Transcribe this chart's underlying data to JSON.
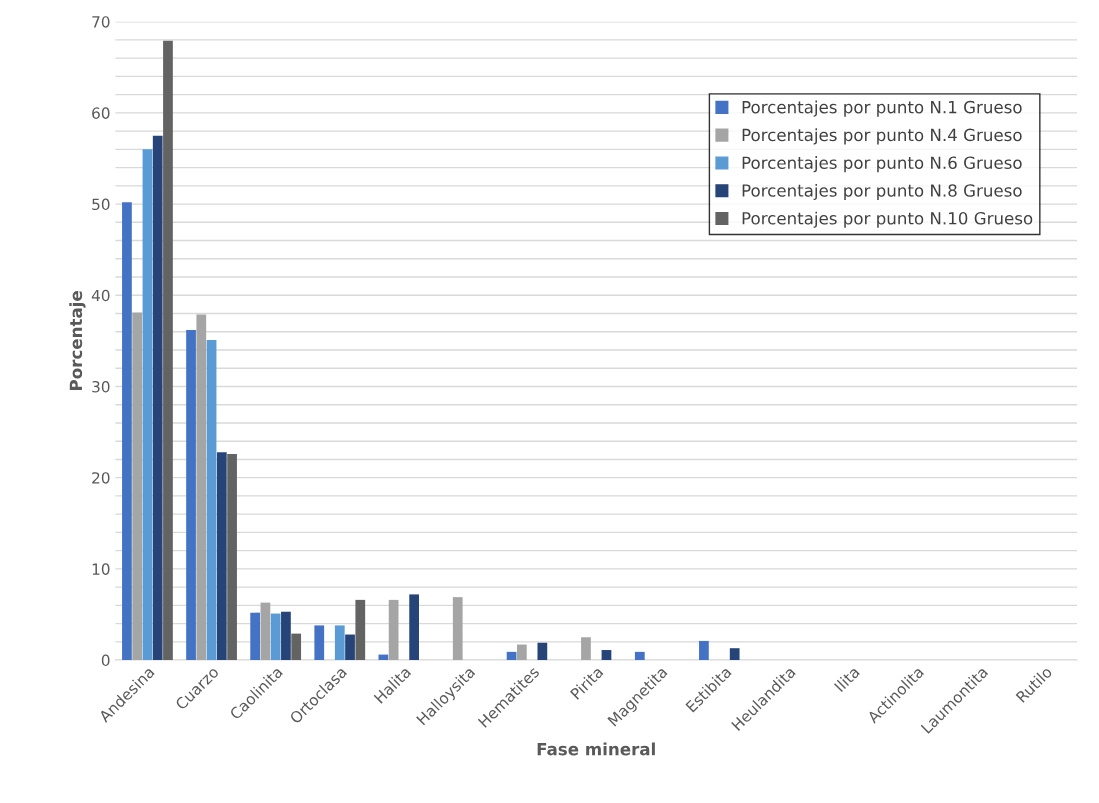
{
  "chart_data": {
    "type": "bar",
    "xlabel": "Fase mineral",
    "ylabel": "Porcentaje",
    "categories": [
      "Andesina",
      "Cuarzo",
      "Caolinita",
      "Ortoclasa",
      "Halita",
      "Halloysita",
      "Hematites",
      "Pirita",
      "Magnetita",
      "Estibita",
      "Heulandita",
      "Ilita",
      "Actinolita",
      "Laumontita",
      "Rutilo"
    ],
    "series": [
      {
        "name": "Porcentajes por punto N.1 Grueso",
        "color": "#4472c4",
        "values": [
          50.2,
          36.2,
          5.2,
          3.8,
          0.6,
          0,
          0.9,
          0,
          0.9,
          2.1,
          0,
          0,
          0,
          0,
          0
        ]
      },
      {
        "name": "Porcentajes por punto N.4 Grueso",
        "color": "#a5a5a5",
        "values": [
          38.1,
          37.9,
          6.3,
          0,
          6.6,
          6.9,
          1.7,
          2.5,
          0,
          0,
          0,
          0,
          0,
          0,
          0
        ]
      },
      {
        "name": "Porcentajes por punto N.6 Grueso",
        "color": "#5b9bd5",
        "values": [
          56.0,
          35.1,
          5.1,
          3.8,
          0,
          0,
          0,
          0,
          0,
          0,
          0,
          0,
          0,
          0,
          0
        ]
      },
      {
        "name": "Porcentajes por punto N.8 Grueso",
        "color": "#264478",
        "values": [
          57.5,
          22.8,
          5.3,
          2.8,
          7.2,
          0,
          1.9,
          1.1,
          0,
          1.3,
          0,
          0,
          0,
          0,
          0
        ]
      },
      {
        "name": "Porcentajes por punto N.10 Grueso",
        "color": "#636363",
        "values": [
          67.9,
          22.6,
          2.9,
          6.6,
          0,
          0,
          0,
          0,
          0,
          0,
          0,
          0,
          0,
          0,
          0
        ]
      }
    ],
    "ylim": [
      0,
      70
    ],
    "yticks": [
      0,
      {
        "value": 2,
        "label": null
      },
      {
        "value": 4,
        "label": null
      },
      {
        "value": 6,
        "label": null
      },
      {
        "value": 8,
        "label": null
      },
      10,
      {
        "value": 12,
        "label": null
      },
      {
        "value": 14,
        "label": null
      },
      {
        "value": 16,
        "label": null
      },
      {
        "value": 18,
        "label": null
      },
      20,
      {
        "value": 22,
        "label": null
      },
      {
        "value": 24,
        "label": null
      },
      {
        "value": 26,
        "label": null
      },
      {
        "value": 28,
        "label": null
      },
      30,
      {
        "value": 32,
        "label": null
      },
      {
        "value": 34,
        "label": null
      },
      {
        "value": 36,
        "label": null
      },
      {
        "value": 38,
        "label": null
      },
      40,
      {
        "value": 42,
        "label": null
      },
      {
        "value": 44,
        "label": null
      },
      {
        "value": 46,
        "label": null
      },
      {
        "value": 48,
        "label": null
      },
      50,
      {
        "value": 52,
        "label": null
      },
      {
        "value": 54,
        "label": null
      },
      {
        "value": 56,
        "label": null
      },
      {
        "value": 58,
        "label": null
      },
      60,
      {
        "value": 62,
        "label": null
      },
      {
        "value": 64,
        "label": null
      },
      {
        "value": 66,
        "label": null
      },
      {
        "value": 68,
        "label": null
      },
      70
    ],
    "grid": "y",
    "legend": "top right"
  }
}
